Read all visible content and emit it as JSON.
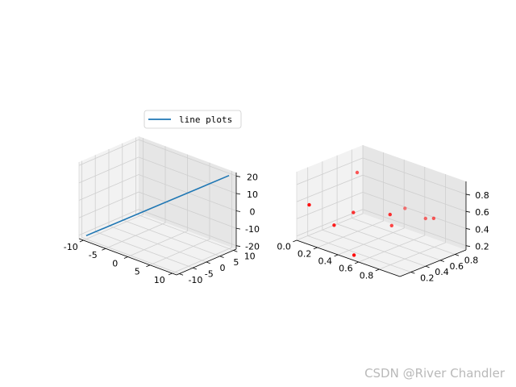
{
  "chart_data": [
    {
      "type": "line",
      "projection": "3d",
      "series": [
        {
          "name": "line plots",
          "color": "#1f77b4",
          "x": [
            -10,
            10
          ],
          "y": [
            -10,
            10
          ],
          "z": [
            -20,
            20
          ]
        }
      ],
      "legend": {
        "labels": [
          "line plots"
        ],
        "placement": "top-right"
      },
      "xticks": [
        -10,
        -5,
        0,
        5,
        10
      ],
      "yticks": [
        -10,
        -5,
        0,
        5,
        10
      ],
      "zticks": [
        -20,
        -10,
        0,
        10,
        20
      ],
      "xlim": [
        -11,
        11
      ],
      "ylim": [
        -11,
        11
      ],
      "zlim": [
        -22,
        22
      ],
      "grid": true
    },
    {
      "type": "scatter",
      "projection": "3d",
      "series": [
        {
          "color": "#ff0000",
          "x": [
            0.05,
            0.18,
            0.22,
            0.3,
            0.48,
            0.52,
            0.6,
            0.67,
            0.75,
            0.9
          ],
          "y": [
            0.15,
            0.62,
            0.25,
            0.4,
            0.85,
            0.1,
            0.5,
            0.38,
            0.75,
            0.65
          ],
          "z": [
            0.55,
            0.82,
            0.35,
            0.48,
            0.45,
            0.18,
            0.42,
            0.62,
            0.48,
            0.58
          ]
        }
      ],
      "xticks": [
        "0.0",
        "0.2",
        "0.4",
        "0.6",
        "0.8"
      ],
      "yticks": [
        "0.2",
        "0.4",
        "0.6",
        "0.8"
      ],
      "zticks": [
        "0.2",
        "0.4",
        "0.6",
        "0.8"
      ],
      "xlim": [
        0,
        1
      ],
      "ylim": [
        0.05,
        0.95
      ],
      "zlim": [
        0.15,
        0.95
      ],
      "grid": true
    }
  ],
  "watermark": "CSDN @River Chandler"
}
